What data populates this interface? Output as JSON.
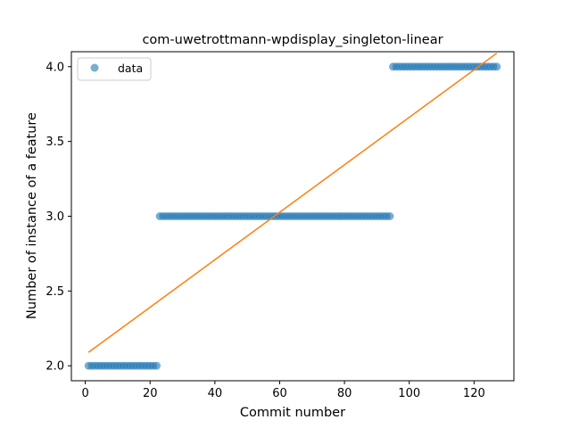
{
  "chart_data": {
    "type": "scatter",
    "title": "com-uwetrottmann-wpdisplay_singleton-linear",
    "xlabel": "Commit number",
    "ylabel": "Number of instance of a feature",
    "xlim": [
      -4.3,
      132.3
    ],
    "ylim": [
      1.9,
      4.1
    ],
    "xticks": [
      0,
      20,
      40,
      60,
      80,
      100,
      120
    ],
    "yticks": [
      2.0,
      2.5,
      3.0,
      3.5,
      4.0
    ],
    "xtick_labels": [
      "0",
      "20",
      "40",
      "60",
      "80",
      "100",
      "120"
    ],
    "ytick_labels": [
      "2.0",
      "2.5",
      "3.0",
      "3.5",
      "4.0"
    ],
    "grid": false,
    "legend": {
      "placement": "top-left",
      "entries": [
        "data"
      ]
    },
    "colors": {
      "points": "#1f77b4",
      "fit_line": "#ff7f0e"
    },
    "series": [
      {
        "name": "data",
        "kind": "scatter",
        "segments": [
          {
            "x_start": 1,
            "x_end": 22,
            "y": 2.0
          },
          {
            "x_start": 23,
            "x_end": 94,
            "y": 3.0
          },
          {
            "x_start": 95,
            "x_end": 127,
            "y": 4.0
          }
        ]
      },
      {
        "kind": "line",
        "points": [
          [
            1,
            2.09
          ],
          [
            127,
            4.09
          ]
        ]
      }
    ]
  }
}
